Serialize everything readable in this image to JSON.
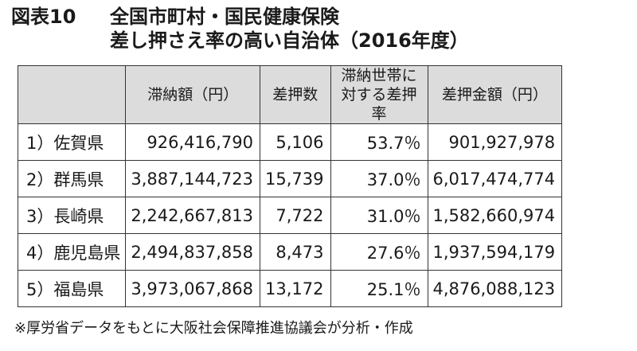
{
  "title": {
    "figure_label": "図表10",
    "line1": "全国市町村・国民健康保険",
    "line2": "差し押さえ率の高い自治体（2016年度）"
  },
  "table": {
    "headers": [
      "",
      "滞納額（円）",
      "差押数",
      "滞納世帯に対する差押率",
      "差押金額（円）"
    ],
    "rows": [
      [
        "1）佐賀県",
        "926,416,790",
        "5,106",
        "53.7％",
        "901,927,978"
      ],
      [
        "2）群馬県",
        "3,887,144,723",
        "15,739",
        "37.0％",
        "6,017,474,774"
      ],
      [
        "3）長崎県",
        "2,242,667,813",
        "7,722",
        "31.0％",
        "1,582,660,974"
      ],
      [
        "4）鹿児島県",
        "2,494,837,858",
        "8,473",
        "27.6％",
        "1,937,594,179"
      ],
      [
        "5）福島県",
        "3,973,067,868",
        "13,172",
        "25.1％",
        "4,876,088,123"
      ]
    ]
  },
  "footnote": "※厚労省データをもとに大阪社会保障推進協議会が分析・作成"
}
